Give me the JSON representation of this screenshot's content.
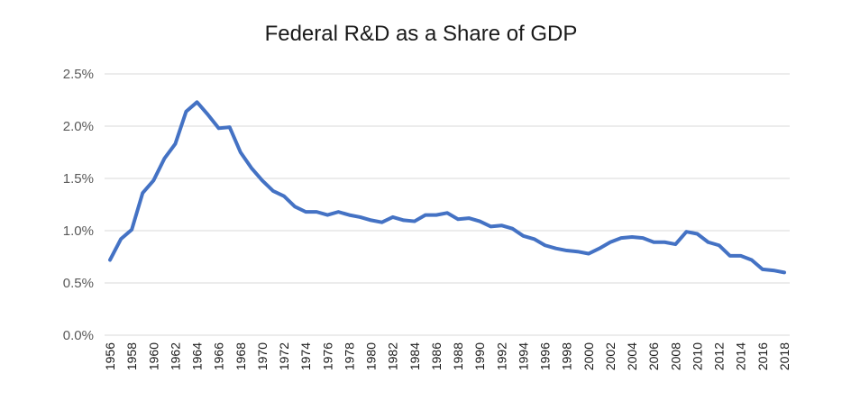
{
  "chart_data": {
    "type": "line",
    "title": "Federal R&D as a Share of GDP",
    "xlabel": "",
    "ylabel": "",
    "ylim": [
      0,
      0.025
    ],
    "yticks": [
      "0.0%",
      "0.5%",
      "1.0%",
      "1.5%",
      "2.0%",
      "2.5%"
    ],
    "ytick_values": [
      0,
      0.005,
      0.01,
      0.015,
      0.02,
      0.025
    ],
    "xtick_labels": [
      "1956",
      "1958",
      "1960",
      "1962",
      "1964",
      "1966",
      "1968",
      "1970",
      "1972",
      "1974",
      "1976",
      "1978",
      "1980",
      "1982",
      "1984",
      "1986",
      "1988",
      "1990",
      "1992",
      "1994",
      "1996",
      "1998",
      "2000",
      "2002",
      "2004",
      "2006",
      "2008",
      "2010",
      "2012",
      "2014",
      "2016",
      "2018"
    ],
    "grid": true,
    "legend": "none",
    "line_color": "#4472c4",
    "series": [
      {
        "x": [
          1956,
          1957,
          1958,
          1959,
          1960,
          1961,
          1962,
          1963,
          1964,
          1965,
          1966,
          1967,
          1968,
          1969,
          1970,
          1971,
          1972,
          1973,
          1974,
          1975,
          1976,
          1977,
          1978,
          1979,
          1980,
          1981,
          1982,
          1983,
          1984,
          1985,
          1986,
          1987,
          1988,
          1989,
          1990,
          1991,
          1992,
          1993,
          1994,
          1995,
          1996,
          1997,
          1998,
          1999,
          2000,
          2001,
          2002,
          2003,
          2004,
          2005,
          2006,
          2007,
          2008,
          2009,
          2010,
          2011,
          2012,
          2013,
          2014,
          2015,
          2016,
          2017,
          2018
        ],
        "values": [
          0.0072,
          0.0092,
          0.0101,
          0.0136,
          0.0148,
          0.0169,
          0.0183,
          0.0214,
          0.0223,
          0.0211,
          0.0198,
          0.0199,
          0.0175,
          0.016,
          0.0148,
          0.0138,
          0.0133,
          0.0123,
          0.0118,
          0.0118,
          0.0115,
          0.0118,
          0.0115,
          0.0113,
          0.011,
          0.0108,
          0.0113,
          0.011,
          0.0109,
          0.0115,
          0.0115,
          0.0117,
          0.0111,
          0.0112,
          0.0109,
          0.0104,
          0.0105,
          0.0102,
          0.0095,
          0.0092,
          0.0086,
          0.0083,
          0.0081,
          0.008,
          0.0078,
          0.0083,
          0.0089,
          0.0093,
          0.0094,
          0.0093,
          0.0089,
          0.0089,
          0.0087,
          0.0099,
          0.0097,
          0.0089,
          0.0086,
          0.0076,
          0.0076,
          0.0072,
          0.0063,
          0.0062,
          0.006
        ]
      }
    ]
  }
}
